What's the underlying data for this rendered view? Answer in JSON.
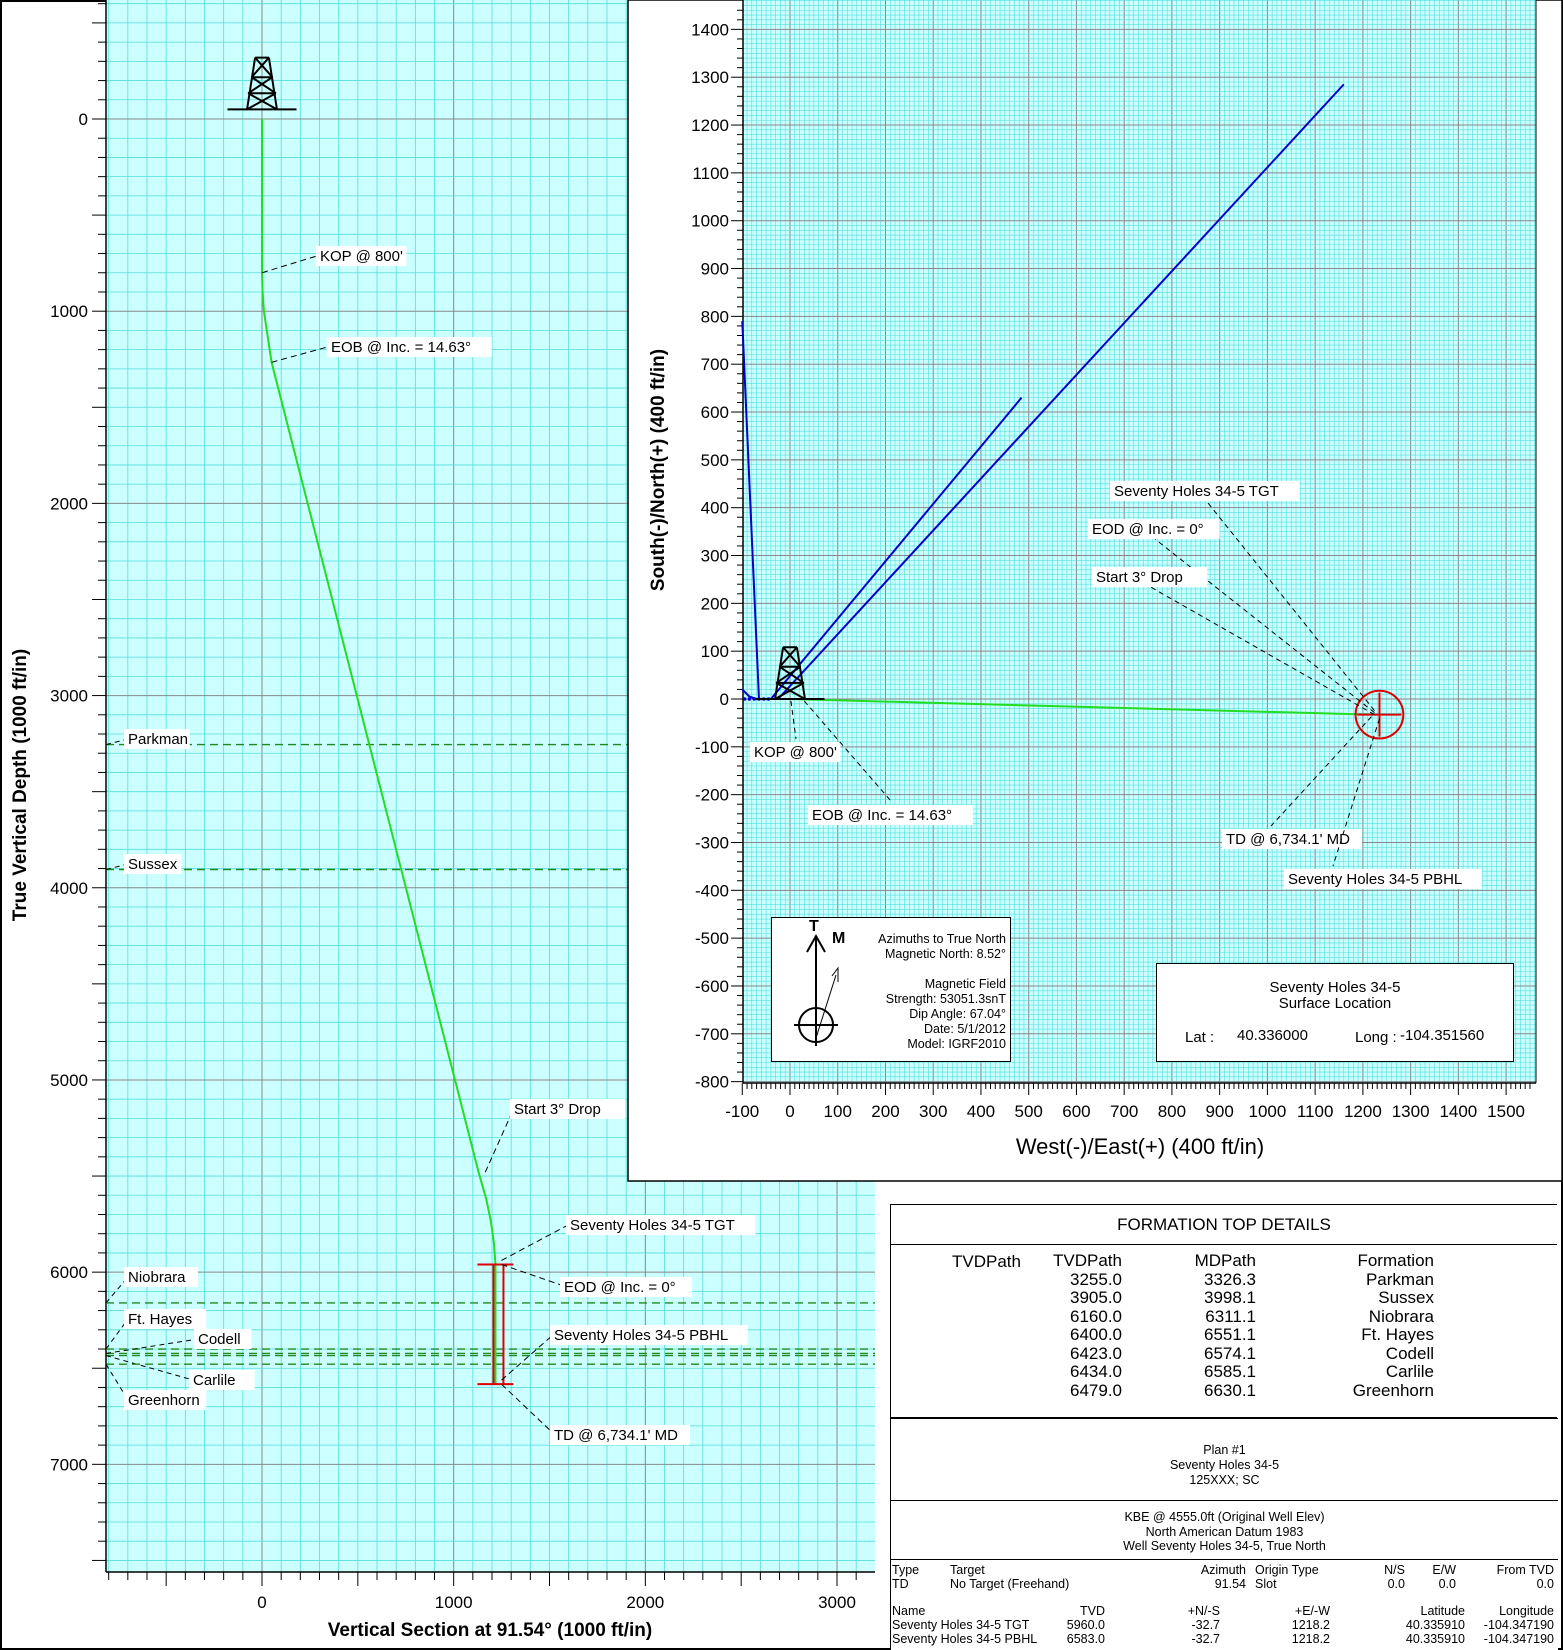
{
  "chart_data": [
    {
      "type": "line",
      "title": "",
      "xlabel": "Vertical Section at 91.54° (1000 ft/in)",
      "ylabel": "True Vertical Depth (1000 ft/in)",
      "xlim": [
        -800,
        3200
      ],
      "ylim": [
        7600,
        -600
      ],
      "y_inverted": true,
      "grid": true,
      "x_ticks": [
        "0",
        "1000",
        "2000",
        "3000"
      ],
      "x_tick_values": [
        0,
        1000,
        2000,
        3000
      ],
      "y_ticks": [
        "0",
        "1000",
        "2000",
        "3000",
        "4000",
        "5000",
        "6000",
        "7000"
      ],
      "y_tick_values": [
        0,
        1000,
        2000,
        3000,
        4000,
        5000,
        6000,
        7000
      ],
      "series": [
        {
          "color": "#22dd22",
          "x": [
            0,
            0,
            3,
            10,
            25,
            50,
            1130,
            1170,
            1195,
            1210,
            1218,
            1218,
            1218
          ],
          "y": [
            0,
            800,
            900,
            1000,
            1100,
            1266,
            5480,
            5620,
            5740,
            5850,
            5960,
            6400,
            6583
          ]
        }
      ],
      "formations": [
        {
          "name": "Parkman",
          "tvd": 3255
        },
        {
          "name": "Sussex",
          "tvd": 3905
        },
        {
          "name": "Niobrara",
          "tvd": 6160
        },
        {
          "name": "Ft. Hayes",
          "tvd": 6400
        },
        {
          "name": "Codell",
          "tvd": 6423
        },
        {
          "name": "Carlile",
          "tvd": 6434
        },
        {
          "name": "Greenhorn",
          "tvd": 6479
        }
      ],
      "target_bar": {
        "x": 1218,
        "y_top": 5960,
        "y_bottom": 6583,
        "color": "#dd0000"
      },
      "annotations": [
        {
          "text": "KOP @ 800'",
          "x": 0,
          "y": 800
        },
        {
          "text": "EOB @ Inc. = 14.63°",
          "x": 50,
          "y": 1266
        },
        {
          "text": "Start 3° Drop",
          "x": 1165,
          "y": 5480
        },
        {
          "text": "Seventy Holes 34-5 TGT",
          "x": 1218,
          "y": 5960
        },
        {
          "text": "EOD @ Inc. = 0°",
          "x": 1218,
          "y": 5960
        },
        {
          "text": "Seventy Holes 34-5 PBHL",
          "x": 1218,
          "y": 6583
        },
        {
          "text": "TD @ 6,734.1' MD",
          "x": 1218,
          "y": 6583
        }
      ]
    },
    {
      "type": "line",
      "title": "",
      "xlabel": "West(-)/East(+) (400 ft/in)",
      "ylabel": "South(-)/North(+) (400 ft/in)",
      "xlim": [
        -100,
        1550
      ],
      "ylim": [
        -800,
        1450
      ],
      "grid": true,
      "x_ticks": [
        "-100",
        "0",
        "100",
        "200",
        "300",
        "400",
        "500",
        "600",
        "700",
        "800",
        "900",
        "1000",
        "1100",
        "1200",
        "1300",
        "1400",
        "1500"
      ],
      "x_tick_values": [
        -100,
        0,
        100,
        200,
        300,
        400,
        500,
        600,
        700,
        800,
        900,
        1000,
        1100,
        1200,
        1300,
        1400,
        1500
      ],
      "y_ticks": [
        "1400",
        "1300",
        "1200",
        "1100",
        "1000",
        "900",
        "800",
        "700",
        "600",
        "500",
        "400",
        "300",
        "200",
        "100",
        "0",
        "-100",
        "-200",
        "-300",
        "-400",
        "-500",
        "-600",
        "-700",
        "-800"
      ],
      "y_tick_values": [
        1400,
        1300,
        1200,
        1100,
        1000,
        900,
        800,
        700,
        600,
        500,
        400,
        300,
        200,
        100,
        0,
        -100,
        -200,
        -300,
        -400,
        -500,
        -600,
        -700,
        -800
      ],
      "series": [
        {
          "color": "#22dd22",
          "x": [
            0,
            1218
          ],
          "y": [
            0,
            -32.7
          ]
        }
      ],
      "offset_wells": [
        {
          "color": "#0000cc",
          "x": [
            -100,
            -65
          ],
          "y": [
            790,
            0
          ]
        },
        {
          "color": "#0000cc",
          "x": [
            -100,
            -85,
            -70
          ],
          "y": [
            20,
            5,
            0
          ]
        },
        {
          "color": "#0000cc",
          "x": [
            -40,
            485
          ],
          "y": [
            0,
            630
          ]
        },
        {
          "color": "#0000cc",
          "x": [
            -25,
            1160
          ],
          "y": [
            0,
            1285
          ]
        }
      ],
      "target_circle": {
        "x": 1218,
        "y": -32.7,
        "radius_ft": 50,
        "color": "#dd0000"
      },
      "annotations": [
        {
          "text": "Seventy Holes 34-5 TGT",
          "x": 1218,
          "y": -32.7
        },
        {
          "text": "EOD @ Inc. = 0°",
          "x": 1218,
          "y": -32.7
        },
        {
          "text": "Start 3° Drop",
          "x": 1218,
          "y": -32.7
        },
        {
          "text": "KOP @ 800'",
          "x": 0,
          "y": 0
        },
        {
          "text": "EOB @ Inc. = 14.63°",
          "x": 30,
          "y": 0
        },
        {
          "text": "TD @ 6,734.1' MD",
          "x": 1218,
          "y": -32.7
        },
        {
          "text": "Seventy Holes 34-5 PBHL",
          "x": 1218,
          "y": -32.7
        }
      ]
    }
  ],
  "north_box": {
    "t_label": "T",
    "m_label": "M",
    "lines": [
      "Azimuths to True North",
      "Magnetic North: 8.52°",
      "",
      "Magnetic Field",
      "Strength: 53051.3snT",
      "Dip Angle: 67.04°",
      "Date: 5/1/2012",
      "Model: IGRF2010"
    ]
  },
  "surface_location": {
    "title1": "Seventy Holes 34-5",
    "title2": "Surface Location",
    "lat_label": "Lat :",
    "lat_value": "40.336000",
    "long_label": "Long :",
    "long_value": "-104.351560"
  },
  "formation_table": {
    "title": "FORMATION TOP DETAILS",
    "headers": [
      "TVDPath",
      "MDPath",
      "Formation"
    ],
    "rows": [
      [
        "3255.0",
        "3326.3",
        "Parkman"
      ],
      [
        "3905.0",
        "3998.1",
        "Sussex"
      ],
      [
        "6160.0",
        "6311.1",
        "Niobrara"
      ],
      [
        "6400.0",
        "6551.1",
        "Ft. Hayes"
      ],
      [
        "6423.0",
        "6574.1",
        "Codell"
      ],
      [
        "6434.0",
        "6585.1",
        "Carlile"
      ],
      [
        "6479.0",
        "6630.1",
        "Greenhorn"
      ]
    ]
  },
  "plan_info": {
    "lines": [
      "Plan #1",
      "Seventy Holes 34-5",
      "125XXX; SC"
    ]
  },
  "datum_info": {
    "lines": [
      "KBE @ 4555.0ft (Original Well Elev)",
      "North American Datum 1983",
      "Well Seventy Holes 34-5, True North"
    ]
  },
  "target_table": {
    "headers": [
      "Type",
      "Target",
      "Azimuth",
      "Origin Type",
      "N/S",
      "E/W",
      "From TVD"
    ],
    "row": [
      "TD",
      "No Target (Freehand)",
      "91.54",
      "Slot",
      "0.0",
      "0.0",
      "0.0"
    ]
  },
  "targets": {
    "headers": [
      "Name",
      "TVD",
      "+N/-S",
      "+E/-W",
      "Latitude",
      "Longitude"
    ],
    "rows": [
      [
        "Seventy Holes 34-5 TGT",
        "5960.0",
        "-32.7",
        "1218.2",
        "40.335910",
        "-104.347190"
      ],
      [
        "Seventy Holes 34-5 PBHL",
        "6583.0",
        "-32.7",
        "1218.2",
        "40.335910",
        "-104.347190"
      ]
    ]
  }
}
